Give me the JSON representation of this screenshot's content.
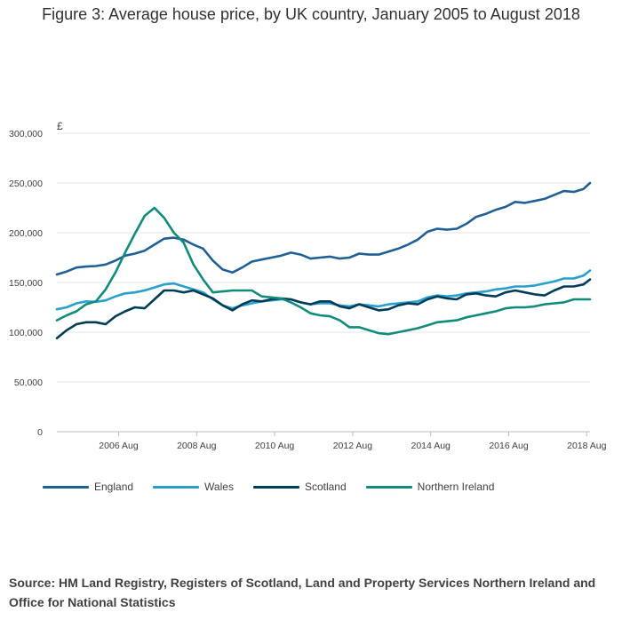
{
  "page": {
    "title": "Figure 3: Average house price, by UK country, January 2005 to August 2018",
    "source": "Source: HM Land Registry, Registers of Scotland, Land and Property Services Northern Ireland and Office for National Statistics"
  },
  "chart_data": {
    "type": "line",
    "title": "Figure 3: Average house price, by UK country, January 2005 to August 2018",
    "ylabel": "£",
    "xlabel": "",
    "ylim": [
      0,
      300000
    ],
    "xlim": [
      2005.0,
      2018.667
    ],
    "grid": true,
    "legend_position": "bottom",
    "y_ticks": [
      {
        "value": 0,
        "label": "0"
      },
      {
        "value": 50000,
        "label": "50,000"
      },
      {
        "value": 100000,
        "label": "100,000"
      },
      {
        "value": 150000,
        "label": "150,000"
      },
      {
        "value": 200000,
        "label": "200,000"
      },
      {
        "value": 250000,
        "label": "250,000"
      },
      {
        "value": 300000,
        "label": "300,000"
      }
    ],
    "x_ticks": [
      {
        "value": 2006.583,
        "label": "2006 Aug"
      },
      {
        "value": 2008.583,
        "label": "2008 Aug"
      },
      {
        "value": 2010.583,
        "label": "2010 Aug"
      },
      {
        "value": 2012.583,
        "label": "2012 Aug"
      },
      {
        "value": 2014.583,
        "label": "2014 Aug"
      },
      {
        "value": 2016.583,
        "label": "2016 Aug"
      },
      {
        "value": 2018.583,
        "label": "2018 Aug"
      }
    ],
    "series": [
      {
        "name": "England",
        "color": "#206095",
        "points": [
          [
            2005.0,
            158000
          ],
          [
            2005.25,
            161000
          ],
          [
            2005.5,
            165000
          ],
          [
            2005.75,
            166000
          ],
          [
            2006.0,
            166500
          ],
          [
            2006.25,
            168000
          ],
          [
            2006.5,
            172000
          ],
          [
            2006.75,
            177000
          ],
          [
            2007.0,
            179000
          ],
          [
            2007.25,
            182000
          ],
          [
            2007.5,
            188000
          ],
          [
            2007.75,
            194000
          ],
          [
            2008.0,
            195000
          ],
          [
            2008.25,
            193000
          ],
          [
            2008.5,
            188000
          ],
          [
            2008.75,
            184000
          ],
          [
            2009.0,
            172000
          ],
          [
            2009.25,
            163000
          ],
          [
            2009.5,
            160000
          ],
          [
            2009.75,
            165000
          ],
          [
            2010.0,
            171000
          ],
          [
            2010.25,
            173000
          ],
          [
            2010.5,
            175000
          ],
          [
            2010.75,
            177000
          ],
          [
            2011.0,
            180000
          ],
          [
            2011.25,
            178000
          ],
          [
            2011.5,
            174000
          ],
          [
            2011.75,
            175000
          ],
          [
            2012.0,
            176000
          ],
          [
            2012.25,
            174000
          ],
          [
            2012.5,
            175000
          ],
          [
            2012.75,
            179000
          ],
          [
            2013.0,
            178000
          ],
          [
            2013.25,
            178000
          ],
          [
            2013.5,
            181000
          ],
          [
            2013.75,
            184000
          ],
          [
            2014.0,
            188000
          ],
          [
            2014.25,
            193000
          ],
          [
            2014.5,
            201000
          ],
          [
            2014.75,
            204000
          ],
          [
            2015.0,
            203000
          ],
          [
            2015.25,
            204000
          ],
          [
            2015.5,
            209000
          ],
          [
            2015.75,
            216000
          ],
          [
            2016.0,
            219000
          ],
          [
            2016.25,
            223000
          ],
          [
            2016.5,
            226000
          ],
          [
            2016.75,
            231000
          ],
          [
            2017.0,
            230000
          ],
          [
            2017.25,
            232000
          ],
          [
            2017.5,
            234000
          ],
          [
            2017.75,
            238000
          ],
          [
            2018.0,
            242000
          ],
          [
            2018.25,
            241000
          ],
          [
            2018.5,
            244000
          ],
          [
            2018.667,
            250000
          ]
        ]
      },
      {
        "name": "Wales",
        "color": "#27a0cc",
        "points": [
          [
            2005.0,
            123000
          ],
          [
            2005.25,
            125000
          ],
          [
            2005.5,
            129000
          ],
          [
            2005.75,
            131000
          ],
          [
            2006.0,
            130500
          ],
          [
            2006.25,
            132000
          ],
          [
            2006.5,
            136000
          ],
          [
            2006.75,
            139000
          ],
          [
            2007.0,
            140000
          ],
          [
            2007.25,
            142000
          ],
          [
            2007.5,
            145000
          ],
          [
            2007.75,
            148000
          ],
          [
            2008.0,
            149000
          ],
          [
            2008.25,
            146000
          ],
          [
            2008.5,
            143000
          ],
          [
            2008.75,
            140000
          ],
          [
            2009.0,
            133000
          ],
          [
            2009.25,
            127000
          ],
          [
            2009.5,
            124000
          ],
          [
            2009.75,
            127000
          ],
          [
            2010.0,
            129000
          ],
          [
            2010.25,
            131000
          ],
          [
            2010.5,
            132000
          ],
          [
            2010.75,
            133000
          ],
          [
            2011.0,
            133000
          ],
          [
            2011.25,
            130000
          ],
          [
            2011.5,
            128000
          ],
          [
            2011.75,
            129000
          ],
          [
            2012.0,
            129000
          ],
          [
            2012.25,
            127000
          ],
          [
            2012.5,
            126000
          ],
          [
            2012.75,
            128000
          ],
          [
            2013.0,
            127000
          ],
          [
            2013.25,
            126000
          ],
          [
            2013.5,
            128000
          ],
          [
            2013.75,
            129000
          ],
          [
            2014.0,
            130000
          ],
          [
            2014.25,
            131000
          ],
          [
            2014.5,
            135000
          ],
          [
            2014.75,
            137000
          ],
          [
            2015.0,
            136000
          ],
          [
            2015.25,
            137000
          ],
          [
            2015.5,
            139000
          ],
          [
            2015.75,
            140000
          ],
          [
            2016.0,
            141000
          ],
          [
            2016.25,
            143000
          ],
          [
            2016.5,
            144000
          ],
          [
            2016.75,
            146000
          ],
          [
            2017.0,
            146000
          ],
          [
            2017.25,
            147000
          ],
          [
            2017.5,
            149000
          ],
          [
            2017.75,
            151000
          ],
          [
            2018.0,
            154000
          ],
          [
            2018.25,
            154000
          ],
          [
            2018.5,
            157000
          ],
          [
            2018.667,
            162000
          ]
        ]
      },
      {
        "name": "Scotland",
        "color": "#003c57",
        "points": [
          [
            2005.0,
            94000
          ],
          [
            2005.25,
            102000
          ],
          [
            2005.5,
            108000
          ],
          [
            2005.75,
            110000
          ],
          [
            2006.0,
            110000
          ],
          [
            2006.25,
            108000
          ],
          [
            2006.5,
            116000
          ],
          [
            2006.75,
            121000
          ],
          [
            2007.0,
            125000
          ],
          [
            2007.25,
            124000
          ],
          [
            2007.5,
            133000
          ],
          [
            2007.75,
            142000
          ],
          [
            2008.0,
            142000
          ],
          [
            2008.25,
            140000
          ],
          [
            2008.5,
            142000
          ],
          [
            2008.75,
            138000
          ],
          [
            2009.0,
            134000
          ],
          [
            2009.25,
            127000
          ],
          [
            2009.5,
            122000
          ],
          [
            2009.75,
            128000
          ],
          [
            2010.0,
            132000
          ],
          [
            2010.25,
            131000
          ],
          [
            2010.5,
            133000
          ],
          [
            2010.75,
            134000
          ],
          [
            2011.0,
            133000
          ],
          [
            2011.25,
            130000
          ],
          [
            2011.5,
            128000
          ],
          [
            2011.75,
            131000
          ],
          [
            2012.0,
            131000
          ],
          [
            2012.25,
            126000
          ],
          [
            2012.5,
            124000
          ],
          [
            2012.75,
            128000
          ],
          [
            2013.0,
            125000
          ],
          [
            2013.25,
            122000
          ],
          [
            2013.5,
            123000
          ],
          [
            2013.75,
            127000
          ],
          [
            2014.0,
            129000
          ],
          [
            2014.25,
            128000
          ],
          [
            2014.5,
            133000
          ],
          [
            2014.75,
            136000
          ],
          [
            2015.0,
            134000
          ],
          [
            2015.25,
            133000
          ],
          [
            2015.5,
            138000
          ],
          [
            2015.75,
            139000
          ],
          [
            2016.0,
            137000
          ],
          [
            2016.25,
            136000
          ],
          [
            2016.5,
            140000
          ],
          [
            2016.75,
            142000
          ],
          [
            2017.0,
            140000
          ],
          [
            2017.25,
            138000
          ],
          [
            2017.5,
            137000
          ],
          [
            2017.75,
            142000
          ],
          [
            2018.0,
            146000
          ],
          [
            2018.25,
            146000
          ],
          [
            2018.5,
            148000
          ],
          [
            2018.667,
            153000
          ]
        ]
      },
      {
        "name": "Northern Ireland",
        "color": "#118c7b",
        "points": [
          [
            2005.0,
            112000
          ],
          [
            2005.25,
            117000
          ],
          [
            2005.5,
            121000
          ],
          [
            2005.75,
            128000
          ],
          [
            2006.0,
            131000
          ],
          [
            2006.25,
            143000
          ],
          [
            2006.5,
            160000
          ],
          [
            2006.75,
            180000
          ],
          [
            2007.0,
            199000
          ],
          [
            2007.25,
            217000
          ],
          [
            2007.5,
            225000
          ],
          [
            2007.75,
            215000
          ],
          [
            2008.0,
            200000
          ],
          [
            2008.25,
            190000
          ],
          [
            2008.5,
            168000
          ],
          [
            2008.75,
            153000
          ],
          [
            2009.0,
            140000
          ],
          [
            2009.25,
            141000
          ],
          [
            2009.5,
            142000
          ],
          [
            2009.75,
            142000
          ],
          [
            2010.0,
            142000
          ],
          [
            2010.25,
            136000
          ],
          [
            2010.5,
            135000
          ],
          [
            2010.75,
            134000
          ],
          [
            2011.0,
            130000
          ],
          [
            2011.25,
            125000
          ],
          [
            2011.5,
            119000
          ],
          [
            2011.75,
            117000
          ],
          [
            2012.0,
            116000
          ],
          [
            2012.25,
            112000
          ],
          [
            2012.5,
            105000
          ],
          [
            2012.75,
            105000
          ],
          [
            2013.0,
            102000
          ],
          [
            2013.25,
            99000
          ],
          [
            2013.5,
            98000
          ],
          [
            2013.75,
            100000
          ],
          [
            2014.0,
            102000
          ],
          [
            2014.25,
            104000
          ],
          [
            2014.5,
            107000
          ],
          [
            2014.75,
            110000
          ],
          [
            2015.0,
            111000
          ],
          [
            2015.25,
            112000
          ],
          [
            2015.5,
            115000
          ],
          [
            2015.75,
            117000
          ],
          [
            2016.0,
            119000
          ],
          [
            2016.25,
            121000
          ],
          [
            2016.5,
            124000
          ],
          [
            2016.75,
            125000
          ],
          [
            2017.0,
            125000
          ],
          [
            2017.25,
            126000
          ],
          [
            2017.5,
            128000
          ],
          [
            2017.75,
            129000
          ],
          [
            2018.0,
            130000
          ],
          [
            2018.25,
            133000
          ],
          [
            2018.5,
            133000
          ],
          [
            2018.667,
            133000
          ]
        ]
      }
    ]
  }
}
